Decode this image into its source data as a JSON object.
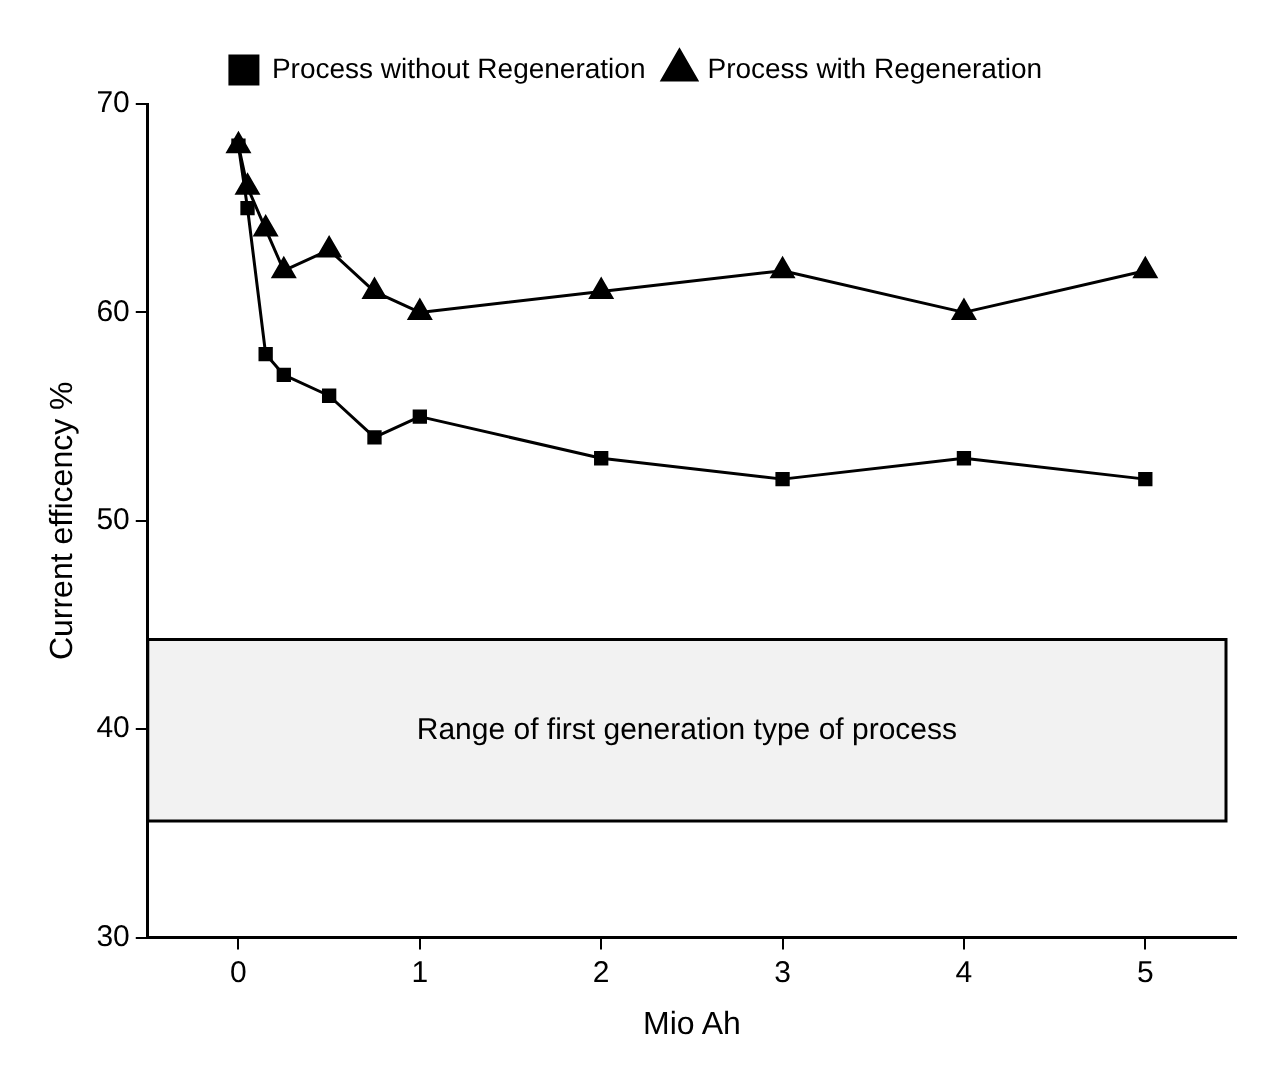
{
  "chart_data": {
    "type": "line",
    "xlabel": "Mio Ah",
    "ylabel": "Current efficency %",
    "xlim": [
      -0.5,
      5.5
    ],
    "xticks": [
      0,
      1,
      2,
      3,
      4,
      5
    ],
    "ylim": [
      30,
      70
    ],
    "yticks": [
      30,
      40,
      50,
      60,
      70
    ],
    "grid": false,
    "legend": "top",
    "line_style": "solid",
    "series": [
      {
        "name": "Process without Regeneration",
        "color": "#000000",
        "marker": "square",
        "x": [
          0,
          0.05,
          0.15,
          0.25,
          0.5,
          0.75,
          1,
          2,
          3,
          4,
          5
        ],
        "values": [
          68,
          65,
          58,
          57,
          56,
          54,
          55,
          53,
          52,
          53,
          52
        ]
      },
      {
        "name": "Process with Regeneration",
        "color": "#000000",
        "marker": "triangle",
        "x": [
          0,
          0.05,
          0.15,
          0.25,
          0.5,
          0.75,
          1,
          2,
          3,
          4,
          5
        ],
        "values": [
          68,
          66,
          64,
          62,
          63,
          61,
          60,
          61,
          62,
          60,
          62
        ]
      }
    ],
    "bands": [
      {
        "axis": "y",
        "from": 35.6,
        "to": 44.3,
        "label": "Range of first generation type of process",
        "color": "#f2f2f2"
      }
    ]
  }
}
